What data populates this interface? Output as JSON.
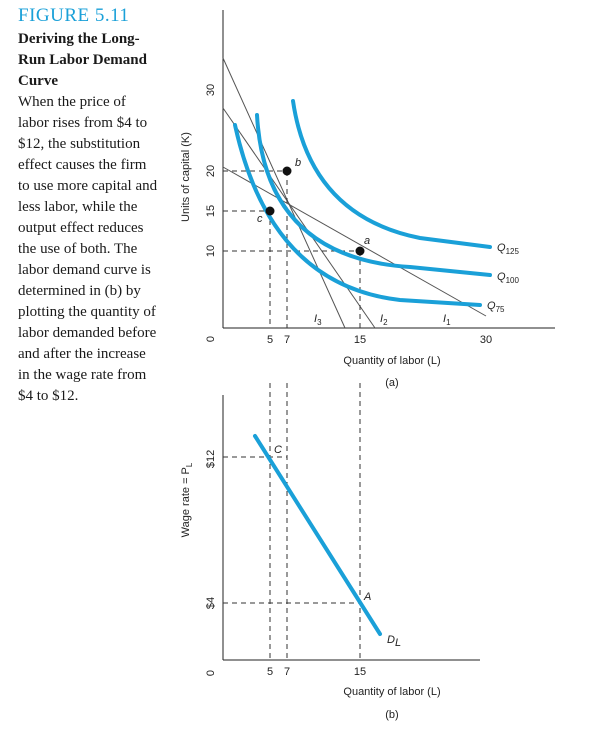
{
  "caption": {
    "figure_label": "FIGURE 5.11",
    "title": "Deriving the Long-Run Labor Demand Curve",
    "text": "When the price of labor rises from $4 to $12, the substitution effect causes the firm to use more capital and less labor, while the output effect reduces the use of both. The labor demand curve is determined in (b) by plotting the quantity of labor demanded before and after the increase in the wage rate from $4 to $12."
  },
  "panel_a": {
    "label": "(a)",
    "xlabel": "Quantity of labor (L)",
    "ylabel": "Units of capital (K)",
    "x_ticks": [
      "5",
      "7",
      "15",
      "30"
    ],
    "y_ticks": [
      "0",
      "10",
      "15",
      "20",
      "30"
    ],
    "isoquants": [
      {
        "label": "Q",
        "sub": "125"
      },
      {
        "label": "Q",
        "sub": "100"
      },
      {
        "label": "Q",
        "sub": "75"
      }
    ],
    "isocosts": [
      {
        "label": "I",
        "sub": "3"
      },
      {
        "label": "I",
        "sub": "2"
      },
      {
        "label": "I",
        "sub": "1"
      }
    ],
    "points": [
      {
        "label": "a",
        "L": 15,
        "K": 10
      },
      {
        "label": "b",
        "L": 7,
        "K": 20
      },
      {
        "label": "c",
        "L": 5,
        "K": 15
      }
    ]
  },
  "panel_b": {
    "label": "(b)",
    "xlabel": "Quantity of labor (L)",
    "ylabel_main": "Wage rate = P",
    "ylabel_sub": "L",
    "x_ticks": [
      "5",
      "7",
      "15"
    ],
    "y_ticks": [
      "0",
      "$4",
      "$12"
    ],
    "curve_label": "D",
    "curve_sub": "L",
    "points": [
      {
        "label": "A",
        "L": 15,
        "wage": 4
      },
      {
        "label": "C",
        "L": 5,
        "wage": 12
      }
    ]
  },
  "colors": {
    "curve": "#1aa0d8",
    "line": "#555555",
    "figure_label": "#1aa0d8"
  }
}
